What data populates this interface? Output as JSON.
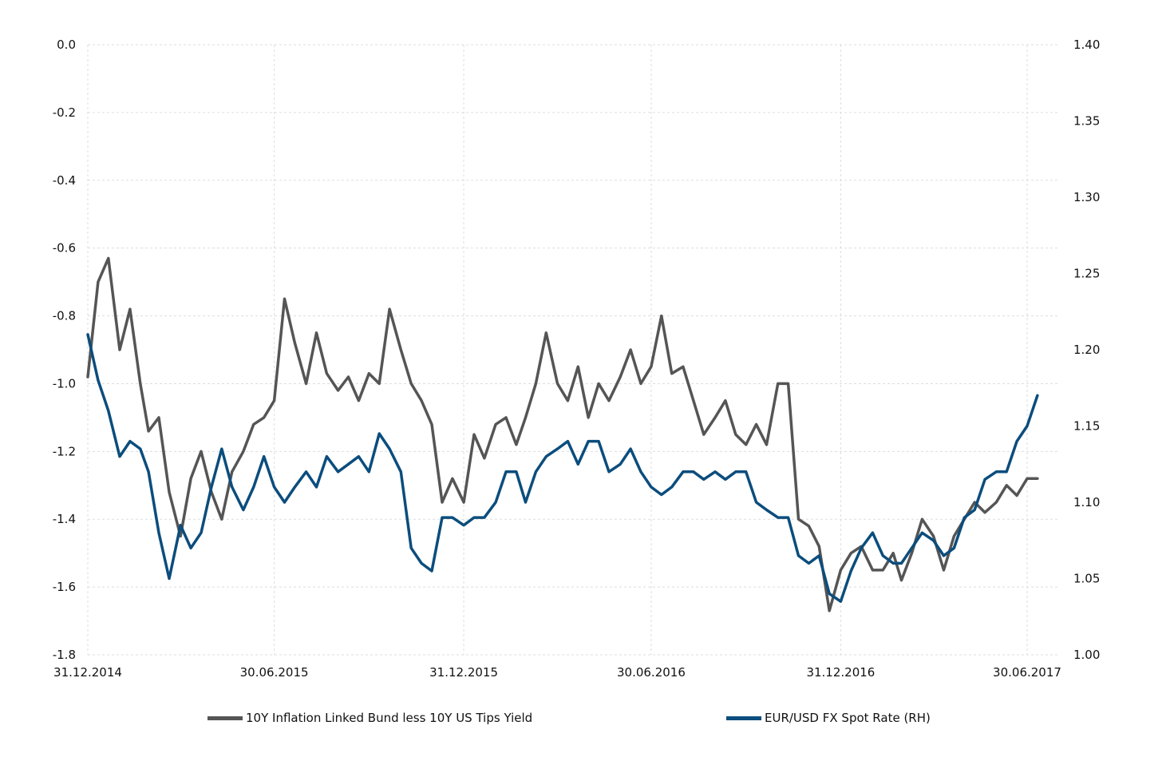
{
  "chart_data": {
    "type": "line",
    "x_tick_labels": [
      "31.12.2014",
      "30.06.2015",
      "31.12.2015",
      "30.06.2016",
      "31.12.2016",
      "30.06.2017"
    ],
    "y_left_tick_labels": [
      "0.0",
      "-0.2",
      "-0.4",
      "-0.6",
      "-0.8",
      "-1.0",
      "-1.2",
      "-1.4",
      "-1.6",
      "-1.8"
    ],
    "y_right_tick_labels": [
      "1.40",
      "1.35",
      "1.30",
      "1.25",
      "1.20",
      "1.15",
      "1.10",
      "1.05",
      "1.00"
    ],
    "ylim_left": [
      -1.8,
      0.0
    ],
    "ylim_right": [
      1.0,
      1.4
    ],
    "xlim": [
      "2014-12-31",
      "2017-07-31"
    ],
    "grid": true,
    "legend_position": "bottom",
    "colors": {
      "series1": "#555555",
      "series2": "#0b4d7d",
      "grid": "#dddddd"
    },
    "series": [
      {
        "name": "10Y Inflation Linked Bund less 10Y US Tips Yield",
        "axis": "left",
        "x": [
          "2014-12-31",
          "2015-01-10",
          "2015-01-20",
          "2015-01-31",
          "2015-02-10",
          "2015-02-20",
          "2015-02-28",
          "2015-03-10",
          "2015-03-20",
          "2015-03-31",
          "2015-04-10",
          "2015-04-20",
          "2015-04-30",
          "2015-05-10",
          "2015-05-20",
          "2015-05-31",
          "2015-06-10",
          "2015-06-20",
          "2015-06-30",
          "2015-07-10",
          "2015-07-20",
          "2015-07-31",
          "2015-08-10",
          "2015-08-20",
          "2015-08-31",
          "2015-09-10",
          "2015-09-20",
          "2015-09-30",
          "2015-10-10",
          "2015-10-20",
          "2015-10-31",
          "2015-11-10",
          "2015-11-20",
          "2015-11-30",
          "2015-12-10",
          "2015-12-20",
          "2015-12-31",
          "2016-01-10",
          "2016-01-20",
          "2016-01-31",
          "2016-02-10",
          "2016-02-20",
          "2016-02-29",
          "2016-03-10",
          "2016-03-20",
          "2016-03-31",
          "2016-04-10",
          "2016-04-20",
          "2016-04-30",
          "2016-05-10",
          "2016-05-20",
          "2016-05-31",
          "2016-06-10",
          "2016-06-20",
          "2016-06-30",
          "2016-07-10",
          "2016-07-20",
          "2016-07-31",
          "2016-08-10",
          "2016-08-20",
          "2016-08-31",
          "2016-09-10",
          "2016-09-20",
          "2016-09-30",
          "2016-10-10",
          "2016-10-20",
          "2016-10-31",
          "2016-11-10",
          "2016-11-20",
          "2016-11-30",
          "2016-12-10",
          "2016-12-20",
          "2016-12-31",
          "2017-01-10",
          "2017-01-20",
          "2017-01-31",
          "2017-02-10",
          "2017-02-20",
          "2017-02-28",
          "2017-03-10",
          "2017-03-20",
          "2017-03-31",
          "2017-04-10",
          "2017-04-20",
          "2017-04-30",
          "2017-05-10",
          "2017-05-20",
          "2017-05-31",
          "2017-06-10",
          "2017-06-20",
          "2017-06-30",
          "2017-07-10"
        ],
        "y": [
          -0.98,
          -0.7,
          -0.63,
          -0.9,
          -0.78,
          -1.0,
          -1.14,
          -1.1,
          -1.32,
          -1.45,
          -1.28,
          -1.2,
          -1.32,
          -1.4,
          -1.26,
          -1.2,
          -1.12,
          -1.1,
          -1.05,
          -0.75,
          -0.88,
          -1.0,
          -0.85,
          -0.97,
          -1.02,
          -0.98,
          -1.05,
          -0.97,
          -1.0,
          -0.78,
          -0.9,
          -1.0,
          -1.05,
          -1.12,
          -1.35,
          -1.28,
          -1.35,
          -1.15,
          -1.22,
          -1.12,
          -1.1,
          -1.18,
          -1.1,
          -1.0,
          -0.85,
          -1.0,
          -1.05,
          -0.95,
          -1.1,
          -1.0,
          -1.05,
          -0.98,
          -0.9,
          -1.0,
          -0.95,
          -0.8,
          -0.97,
          -0.95,
          -1.05,
          -1.15,
          -1.1,
          -1.05,
          -1.15,
          -1.18,
          -1.12,
          -1.18,
          -1.0,
          -1.0,
          -1.4,
          -1.42,
          -1.48,
          -1.67,
          -1.55,
          -1.5,
          -1.48,
          -1.55,
          -1.55,
          -1.5,
          -1.58,
          -1.5,
          -1.4,
          -1.45,
          -1.55,
          -1.45,
          -1.4,
          -1.35,
          -1.38,
          -1.35,
          -1.3,
          -1.33,
          -1.28,
          -1.28
        ]
      },
      {
        "name": "EUR/USD FX Spot Rate (RH)",
        "axis": "right",
        "x": [
          "2014-12-31",
          "2015-01-10",
          "2015-01-20",
          "2015-01-31",
          "2015-02-10",
          "2015-02-20",
          "2015-02-28",
          "2015-03-10",
          "2015-03-20",
          "2015-03-31",
          "2015-04-10",
          "2015-04-20",
          "2015-04-30",
          "2015-05-10",
          "2015-05-20",
          "2015-05-31",
          "2015-06-10",
          "2015-06-20",
          "2015-06-30",
          "2015-07-10",
          "2015-07-20",
          "2015-07-31",
          "2015-08-10",
          "2015-08-20",
          "2015-08-31",
          "2015-09-10",
          "2015-09-20",
          "2015-09-30",
          "2015-10-10",
          "2015-10-20",
          "2015-10-31",
          "2015-11-10",
          "2015-11-20",
          "2015-11-30",
          "2015-12-10",
          "2015-12-20",
          "2015-12-31",
          "2016-01-10",
          "2016-01-20",
          "2016-01-31",
          "2016-02-10",
          "2016-02-20",
          "2016-02-29",
          "2016-03-10",
          "2016-03-20",
          "2016-03-31",
          "2016-04-10",
          "2016-04-20",
          "2016-04-30",
          "2016-05-10",
          "2016-05-20",
          "2016-05-31",
          "2016-06-10",
          "2016-06-20",
          "2016-06-30",
          "2016-07-10",
          "2016-07-20",
          "2016-07-31",
          "2016-08-10",
          "2016-08-20",
          "2016-08-31",
          "2016-09-10",
          "2016-09-20",
          "2016-09-30",
          "2016-10-10",
          "2016-10-20",
          "2016-10-31",
          "2016-11-10",
          "2016-11-20",
          "2016-11-30",
          "2016-12-10",
          "2016-12-20",
          "2016-12-31",
          "2017-01-10",
          "2017-01-20",
          "2017-01-31",
          "2017-02-10",
          "2017-02-20",
          "2017-02-28",
          "2017-03-10",
          "2017-03-20",
          "2017-03-31",
          "2017-04-10",
          "2017-04-20",
          "2017-04-30",
          "2017-05-10",
          "2017-05-20",
          "2017-05-31",
          "2017-06-10",
          "2017-06-20",
          "2017-06-30",
          "2017-07-10"
        ],
        "y": [
          1.21,
          1.18,
          1.16,
          1.13,
          1.14,
          1.135,
          1.12,
          1.08,
          1.05,
          1.085,
          1.07,
          1.08,
          1.11,
          1.135,
          1.11,
          1.095,
          1.11,
          1.13,
          1.11,
          1.1,
          1.11,
          1.12,
          1.11,
          1.13,
          1.12,
          1.125,
          1.13,
          1.12,
          1.145,
          1.135,
          1.12,
          1.07,
          1.06,
          1.055,
          1.09,
          1.09,
          1.085,
          1.09,
          1.09,
          1.1,
          1.12,
          1.12,
          1.1,
          1.12,
          1.13,
          1.135,
          1.14,
          1.125,
          1.14,
          1.14,
          1.12,
          1.125,
          1.135,
          1.12,
          1.11,
          1.105,
          1.11,
          1.12,
          1.12,
          1.115,
          1.12,
          1.115,
          1.12,
          1.12,
          1.1,
          1.095,
          1.09,
          1.09,
          1.065,
          1.06,
          1.065,
          1.04,
          1.035,
          1.055,
          1.07,
          1.08,
          1.065,
          1.06,
          1.06,
          1.07,
          1.08,
          1.075,
          1.065,
          1.07,
          1.09,
          1.095,
          1.115,
          1.12,
          1.12,
          1.14,
          1.15,
          1.17
        ]
      }
    ]
  }
}
